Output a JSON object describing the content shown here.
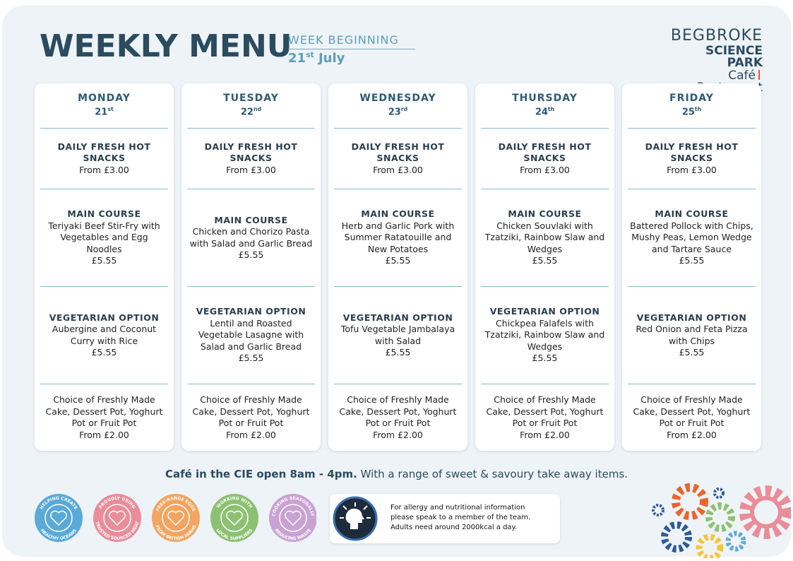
{
  "header": {
    "title": "WEEKLY MENU",
    "week_label": "WEEK BEGINNING",
    "week_day": "21",
    "week_suffix": "st",
    "week_month": "July"
  },
  "logo": {
    "line1": "BEGBROKE",
    "line2": "SCIENCE PARK",
    "line3a": "Café",
    "line3b": "Restaurant"
  },
  "days": [
    {
      "name": "MONDAY",
      "date": "21",
      "suffix": "st",
      "sections": [
        {
          "title": "DAILY FRESH HOT SNACKS",
          "price": "From £3.00"
        },
        {
          "title": "MAIN COURSE",
          "text": "Teriyaki Beef Stir-Fry with Vegetables and Egg Noodles",
          "price": "£5.55"
        },
        {
          "title": "VEGETARIAN OPTION",
          "text": "Aubergine and Coconut Curry with Rice",
          "price": "£5.55"
        },
        {
          "text": "Choice of Freshly Made Cake, Dessert Pot, Yoghurt Pot or Fruit Pot",
          "price": "From £2.00"
        }
      ]
    },
    {
      "name": "TUESDAY",
      "date": "22",
      "suffix": "nd",
      "sections": [
        {
          "title": "DAILY FRESH HOT SNACKS",
          "price": "From £3.00"
        },
        {
          "title": "MAIN COURSE",
          "text": "Chicken and Chorizo Pasta with Salad and Garlic Bread",
          "price": "£5.55"
        },
        {
          "title": "VEGETARIAN OPTION",
          "text": "Lentil and Roasted Vegetable Lasagne with Salad and Garlic Bread",
          "price": "£5.55"
        },
        {
          "text": "Choice of Freshly Made Cake, Dessert Pot, Yoghurt Pot or Fruit Pot",
          "price": "From £2.00"
        }
      ]
    },
    {
      "name": "WEDNESDAY",
      "date": "23",
      "suffix": "rd",
      "sections": [
        {
          "title": "DAILY FRESH HOT SNACKS",
          "price": "From £3.00"
        },
        {
          "title": "MAIN COURSE",
          "text": "Herb and Garlic Pork with Summer Ratatouille and New Potatoes",
          "price": "£5.55"
        },
        {
          "title": "VEGETARIAN OPTION",
          "text": "Tofu Vegetable Jambalaya with Salad",
          "price": "£5.55"
        },
        {
          "text": "Choice of Freshly Made Cake, Dessert Pot, Yoghurt Pot or Fruit Pot",
          "price": "From £2.00"
        }
      ]
    },
    {
      "name": "THURSDAY",
      "date": "24",
      "suffix": "th",
      "sections": [
        {
          "title": "DAILY FRESH HOT SNACKS",
          "price": "From £3.00"
        },
        {
          "title": "MAIN COURSE",
          "text": "Chicken Souvlaki with Tzatziki, Rainbow Slaw and Wedges",
          "price": "£5.55"
        },
        {
          "title": "VEGETARIAN OPTION",
          "text": "Chickpea Falafels with Tzatziki, Rainbow Slaw and Wedges",
          "price": "£5.55"
        },
        {
          "text": "Choice of Freshly Made Cake, Dessert Pot, Yoghurt Pot or Fruit Pot",
          "price": "From £2.00"
        }
      ]
    },
    {
      "name": "FRIDAY",
      "date": "25",
      "suffix": "th",
      "sections": [
        {
          "title": "DAILY FRESH HOT SNACKS",
          "price": "From £3.00"
        },
        {
          "title": "MAIN COURSE",
          "text": "Battered Pollock with Chips, Mushy Peas, Lemon Wedge and Tartare Sauce",
          "price": "£5.55"
        },
        {
          "title": "VEGETARIAN OPTION",
          "text": "Red Onion and Feta Pizza with Chips",
          "price": "£5.55"
        },
        {
          "text": "Choice of Freshly Made Cake, Dessert Pot, Yoghurt Pot or Fruit Pot",
          "price": "From £2.00"
        }
      ]
    }
  ],
  "footer": {
    "cafe_bold": "Café in the CIE open 8am - 4pm.",
    "cafe_rest": "With a range of sweet & savoury take away items.",
    "badges": [
      {
        "top": "HELPING CREATE",
        "bottom": "HEALTHY OCEANS",
        "color": "#5aaad8"
      },
      {
        "top": "PROUDLY USING",
        "bottom": "TRUSTED SOURCED MEAT",
        "color": "#e98d9a"
      },
      {
        "top": "FREE-RANGE EGGS",
        "bottom": "FROM BRITISH FARMS",
        "color": "#f1a561"
      },
      {
        "top": "WORKING WITH",
        "bottom": "LOCAL SUPPLIERS",
        "color": "#8dc172"
      },
      {
        "top": "COOKING SEASONALLY",
        "bottom": "REDUCING WASTE",
        "color": "#c9a2d2"
      }
    ],
    "allergy": [
      "For allergy and nutritional information",
      "please speak to a member of the team.",
      "Adults need around 2000kcal a day."
    ]
  }
}
